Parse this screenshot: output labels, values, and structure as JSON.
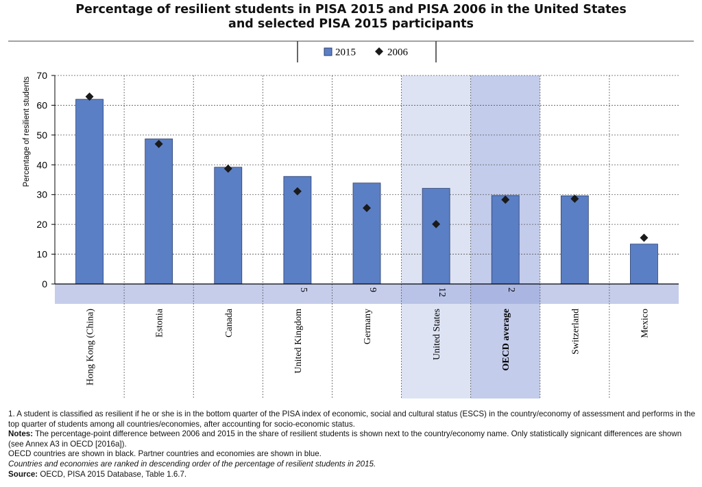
{
  "title_lines": [
    "Percentage of resilient students in PISA 2015 and PISA 2006 in the United States",
    "and selected PISA 2015 participants"
  ],
  "chart_data": {
    "type": "bar",
    "title": "Percentage of resilient students in PISA 2015 and PISA 2006 in the United States and selected PISA 2015 participants",
    "ylabel": "Percentage of resilient students",
    "xlabel": "",
    "ylim": [
      0,
      70
    ],
    "yticks": [
      0,
      10,
      20,
      30,
      40,
      50,
      60,
      70
    ],
    "grid": true,
    "legend_position": "top-center",
    "categories": [
      "Hong Kong (China)",
      "Estonia",
      "Canada",
      "United Kingdom",
      "Germany",
      "United States",
      "OECD average",
      "Switzerland",
      "Mexico"
    ],
    "category_colors": [
      "#1f6fa8",
      "#000000",
      "#000000",
      "#000000",
      "#000000",
      "#000000",
      "#000000",
      "#000000",
      "#000000"
    ],
    "category_bold": [
      false,
      false,
      false,
      false,
      false,
      false,
      true,
      false,
      false
    ],
    "highlight": {
      "United States": "#dde3f3",
      "OECD average": "#c3cceb"
    },
    "differences": [
      "",
      "",
      "",
      "5",
      "9",
      "12",
      "2",
      "",
      ""
    ],
    "series": [
      {
        "name": "2015",
        "type": "bar",
        "color": "#5b7fc4",
        "values": [
          62.0,
          48.7,
          39.2,
          36.1,
          33.9,
          32.1,
          29.7,
          29.6,
          13.4
        ]
      },
      {
        "name": "2006",
        "type": "marker",
        "color": "#1a1a1a",
        "values": [
          62.9,
          47.0,
          38.7,
          31.1,
          25.5,
          20.1,
          28.3,
          28.6,
          15.5
        ]
      }
    ]
  },
  "notes": {
    "footnote1": "1. A student is classified as resilient if he or she is in the bottom quarter of the PISA index of economic, social and cultural status (ESCS) in the country/economy of assessment and performs in the top quarter of students among all countries/economies, after accounting for socio-economic status.",
    "notes_label": "Notes:",
    "notes_text": " The percentage-point difference between 2006 and 2015 in the share of resilient students is shown next to the country/economy name. Only statistically signicant differences are shown (see Annex A3 in OECD [2016a]).",
    "oecd_line": "OECD countries are shown in black. Partner countries and economies are shown in blue.",
    "ranking_line": "Countries and economies are ranked in descending order of the percentage of resilient students in 2015.",
    "source_label": "Source:",
    "source_text": " OECD, PISA 2015 Database, Table 1.6.7."
  }
}
